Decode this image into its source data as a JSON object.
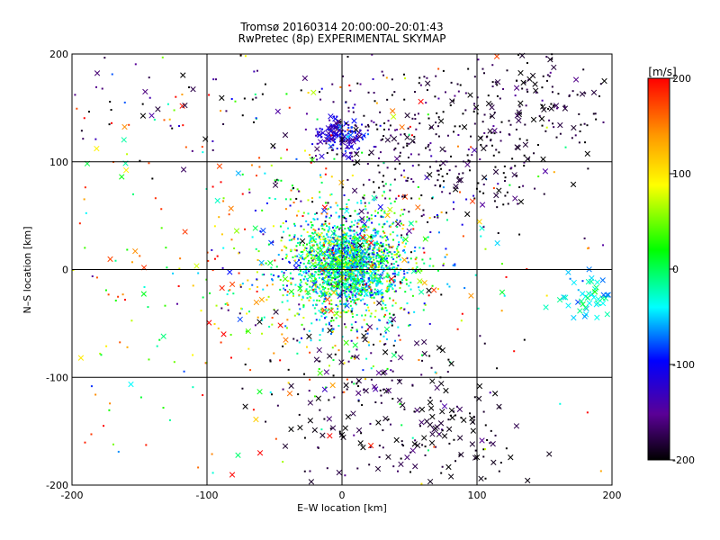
{
  "chart_data": {
    "type": "scatter",
    "title": "Tromsø 20160314 20:00:00–20:01:43",
    "subtitle": "RwPretec (8p) EXPERIMENTAL SKYMAP",
    "xlabel": "E–W location [km]",
    "ylabel": "N–S location [km]",
    "xlim": [
      -200,
      200
    ],
    "ylim": [
      -200,
      200
    ],
    "xticks": [
      -200,
      -100,
      0,
      100,
      200
    ],
    "yticks": [
      -200,
      -100,
      0,
      100,
      200
    ],
    "grid": true,
    "colorbar": {
      "label": "[m/s]",
      "range": [
        -200,
        200
      ],
      "ticks": [
        200,
        100,
        0,
        -100,
        -200
      ],
      "colormap": "black-purple-blue-cyan-green-yellow-orange-red"
    },
    "markers": {
      "point": "dot (+)",
      "cross": "x"
    },
    "clusters": [
      {
        "name": "center dense",
        "x": 5,
        "y": 5,
        "sx": 18,
        "sy": 20,
        "n": 1500,
        "v": -20,
        "sv": 50,
        "cross": 0.05
      },
      {
        "name": "center wide",
        "x": 0,
        "y": 0,
        "sx": 40,
        "sy": 40,
        "n": 700,
        "v": 0,
        "sv": 90,
        "cross": 0.08
      },
      {
        "name": "north cluster",
        "x": 0,
        "y": 125,
        "sx": 10,
        "sy": 9,
        "n": 160,
        "v": -120,
        "sv": 30,
        "cross": 0.25
      },
      {
        "name": "north-east dark",
        "x": 70,
        "y": 115,
        "sx": 50,
        "sy": 40,
        "n": 360,
        "v": -185,
        "sv": 25,
        "cross": 0.15
      },
      {
        "name": "north-east far",
        "x": 150,
        "y": 150,
        "sx": 35,
        "sy": 35,
        "n": 130,
        "v": -190,
        "sv": 15,
        "cross": 0.2
      },
      {
        "name": "south dark",
        "x": 20,
        "y": -120,
        "sx": 40,
        "sy": 40,
        "n": 200,
        "v": -185,
        "sv": 20,
        "cross": 0.4
      },
      {
        "name": "south-east dark",
        "x": 85,
        "y": -160,
        "sx": 25,
        "sy": 25,
        "n": 80,
        "v": -195,
        "sv": 10,
        "cross": 0.6
      },
      {
        "name": "east cyan",
        "x": 185,
        "y": -25,
        "sx": 12,
        "sy": 12,
        "n": 50,
        "v": -40,
        "sv": 25,
        "cross": 0.9
      },
      {
        "name": "scattered red",
        "x": -60,
        "y": 30,
        "sx": 110,
        "sy": 110,
        "n": 220,
        "v": 170,
        "sv": 30,
        "cross": 0.25
      },
      {
        "name": "scattered green",
        "x": -60,
        "y": 0,
        "sx": 110,
        "sy": 110,
        "n": 200,
        "v": 20,
        "sv": 60,
        "cross": 0.25
      },
      {
        "name": "north-west dark",
        "x": -100,
        "y": 160,
        "sx": 60,
        "sy": 30,
        "n": 80,
        "v": -170,
        "sv": 40,
        "cross": 0.3
      }
    ]
  },
  "colors": {
    "background": "#ffffff",
    "axis": "#000000",
    "grid": "#000000"
  }
}
